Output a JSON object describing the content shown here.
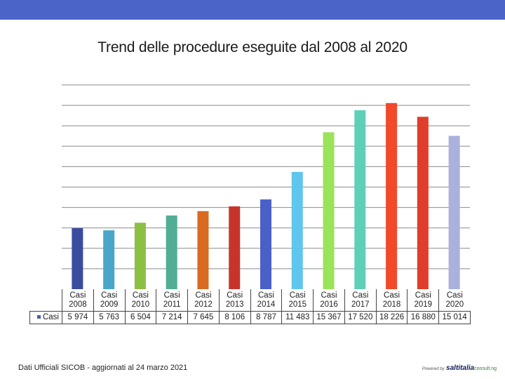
{
  "chart_data": {
    "type": "bar",
    "title": "Trend delle procedure eseguite dal 2008 al 2020",
    "categories": [
      "Casi 2008",
      "Casi 2009",
      "Casi 2010",
      "Casi 2011",
      "Casi 2012",
      "Casi 2013",
      "Casi 2014",
      "Casi 2015",
      "Casi 2016",
      "Casi 2017",
      "Casi 2018",
      "Casi 2019",
      "Casi 2020"
    ],
    "category_lines": [
      [
        "Casi",
        "2008"
      ],
      [
        "Casi",
        "2009"
      ],
      [
        "Casi",
        "2010"
      ],
      [
        "Casi",
        "2011"
      ],
      [
        "Casi",
        "2012"
      ],
      [
        "Casi",
        "2013"
      ],
      [
        "Casi",
        "2014"
      ],
      [
        "Casi",
        "2015"
      ],
      [
        "Casi",
        "2016"
      ],
      [
        "Casi",
        "2017"
      ],
      [
        "Casi",
        "2018"
      ],
      [
        "Casi",
        "2019"
      ],
      [
        "Casi",
        "2020"
      ]
    ],
    "series": [
      {
        "name": "Casi",
        "values": [
          5974,
          5763,
          6504,
          7214,
          7645,
          8106,
          8787,
          11483,
          15367,
          17520,
          18226,
          16880,
          15014
        ]
      }
    ],
    "value_labels": [
      "5 974",
      "5 763",
      "6 504",
      "7 214",
      "7 645",
      "8 106",
      "8 787",
      "11 483",
      "15 367",
      "17 520",
      "18 226",
      "16 880",
      "15 014"
    ],
    "bar_colors": [
      "#3b4c9e",
      "#49a6c8",
      "#8cc043",
      "#4fae94",
      "#d96b1f",
      "#c9342a",
      "#4a60c9",
      "#5fc6ee",
      "#9be35a",
      "#5ed0b8",
      "#f2492a",
      "#e03d2a",
      "#a9b1dc"
    ],
    "ylim": [
      0,
      20000
    ],
    "gridline_step": 2000,
    "xlabel": "",
    "ylabel": "",
    "legend": "in data table",
    "grid": true
  },
  "footer": {
    "source_note": "Dati Ufficiali SICOB - aggiornati al 24 marzo 2021",
    "brand_powered": "Powered by",
    "brand_name": "saltitalia",
    "brand_domain": "consult.ng"
  }
}
